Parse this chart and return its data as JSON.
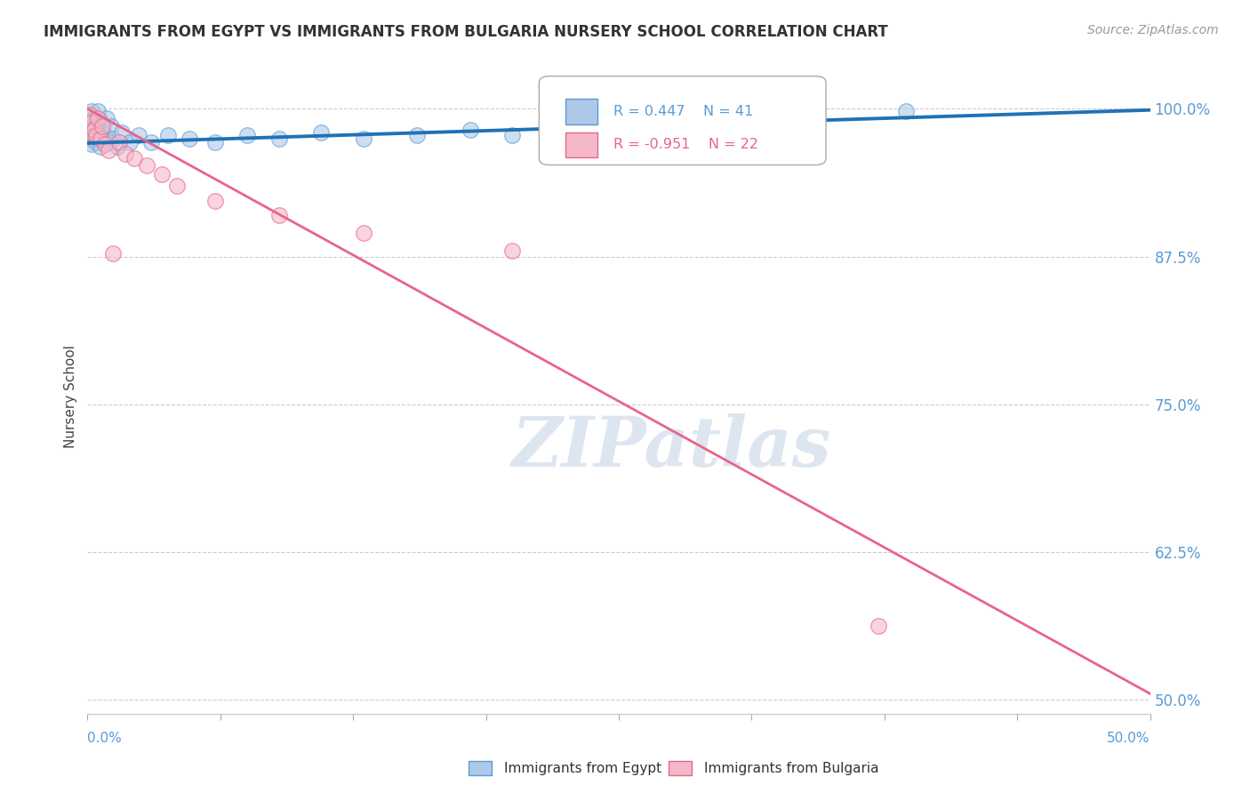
{
  "title": "IMMIGRANTS FROM EGYPT VS IMMIGRANTS FROM BULGARIA NURSERY SCHOOL CORRELATION CHART",
  "source": "Source: ZipAtlas.com",
  "ylabel": "Nursery School",
  "yticks": [
    0.5,
    0.625,
    0.75,
    0.875,
    1.0
  ],
  "ytick_labels": [
    "50.0%",
    "62.5%",
    "75.0%",
    "87.5%",
    "100.0%"
  ],
  "xlim": [
    0.0,
    0.5
  ],
  "ylim": [
    0.488,
    1.025
  ],
  "egypt_color": "#aec9e8",
  "egypt_edge": "#5b9bd5",
  "bulgaria_color": "#f4b8c8",
  "bulgaria_edge": "#e8648a",
  "egypt_R": 0.447,
  "egypt_N": 41,
  "bulgaria_R": -0.951,
  "bulgaria_N": 22,
  "egypt_line_color": "#2171b5",
  "bulgaria_line_color": "#e8648a",
  "watermark_color": "#ccd9e8",
  "egypt_scatter_x": [
    0.001,
    0.001,
    0.002,
    0.002,
    0.002,
    0.003,
    0.003,
    0.004,
    0.004,
    0.005,
    0.005,
    0.006,
    0.006,
    0.007,
    0.008,
    0.009,
    0.01,
    0.011,
    0.012,
    0.014,
    0.016,
    0.02,
    0.024,
    0.03,
    0.038,
    0.048,
    0.06,
    0.075,
    0.09,
    0.11,
    0.13,
    0.155,
    0.18,
    0.2,
    0.22,
    0.24,
    0.26,
    0.28,
    0.3,
    0.33,
    0.385
  ],
  "egypt_scatter_y": [
    0.99,
    0.975,
    0.998,
    0.985,
    0.97,
    0.992,
    0.978,
    0.985,
    0.972,
    0.998,
    0.975,
    0.99,
    0.968,
    0.982,
    0.978,
    0.992,
    0.972,
    0.985,
    0.975,
    0.968,
    0.98,
    0.972,
    0.978,
    0.972,
    0.978,
    0.975,
    0.972,
    0.978,
    0.975,
    0.98,
    0.975,
    0.978,
    0.982,
    0.978,
    0.985,
    0.98,
    0.982,
    0.985,
    0.982,
    0.988,
    0.998
  ],
  "bulgaria_scatter_x": [
    0.001,
    0.001,
    0.002,
    0.003,
    0.004,
    0.005,
    0.006,
    0.007,
    0.008,
    0.01,
    0.012,
    0.015,
    0.018,
    0.022,
    0.028,
    0.035,
    0.042,
    0.06,
    0.09,
    0.13,
    0.2,
    0.372
  ],
  "bulgaria_scatter_y": [
    0.995,
    0.98,
    0.988,
    0.982,
    0.978,
    0.992,
    0.975,
    0.985,
    0.97,
    0.965,
    0.878,
    0.972,
    0.962,
    0.958,
    0.952,
    0.945,
    0.935,
    0.922,
    0.91,
    0.895,
    0.88,
    0.562
  ],
  "egypt_trendline_x": [
    0.0,
    0.5
  ],
  "egypt_trendline_y": [
    0.971,
    0.999
  ],
  "bulgaria_trendline_x": [
    0.0,
    0.5
  ],
  "bulgaria_trendline_y": [
    1.0,
    0.505
  ]
}
